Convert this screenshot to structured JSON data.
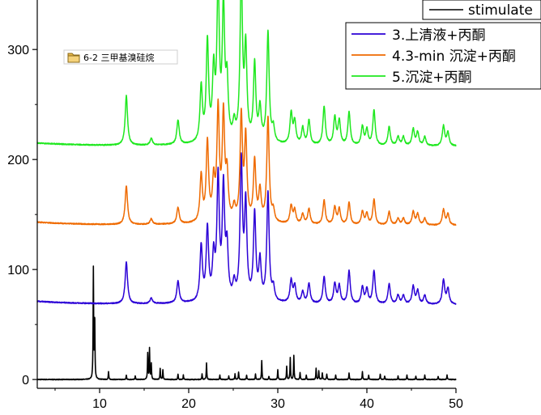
{
  "chart_data": {
    "type": "line",
    "title": "",
    "xlabel": "",
    "ylabel": "",
    "xlim": [
      3,
      50
    ],
    "ylim": [
      -8,
      345
    ],
    "x_ticks": [
      10,
      20,
      30,
      40,
      50
    ],
    "y_ticks": [
      0,
      100,
      200,
      300
    ],
    "grid": false,
    "legend_position": "top-right",
    "badge": {
      "icon": "folder-icon",
      "text": "6-2 三甲基溴硅烷"
    },
    "series": [
      {
        "name": "stimulate",
        "color": "#000000",
        "baseline": 0,
        "peaks": [
          [
            9.3,
            100
          ],
          [
            9.45,
            55
          ],
          [
            11.0,
            7
          ],
          [
            13.0,
            4
          ],
          [
            14.0,
            3
          ],
          [
            15.4,
            24
          ],
          [
            15.6,
            28
          ],
          [
            15.8,
            14
          ],
          [
            16.8,
            10
          ],
          [
            17.1,
            9
          ],
          [
            18.8,
            5
          ],
          [
            19.4,
            4
          ],
          [
            21.5,
            5
          ],
          [
            22.0,
            15
          ],
          [
            23.5,
            4
          ],
          [
            24.5,
            3
          ],
          [
            25.2,
            5
          ],
          [
            25.6,
            7
          ],
          [
            26.5,
            4
          ],
          [
            27.5,
            5
          ],
          [
            28.2,
            17
          ],
          [
            29.0,
            3
          ],
          [
            30.0,
            9
          ],
          [
            31.0,
            12
          ],
          [
            31.4,
            20
          ],
          [
            31.8,
            22
          ],
          [
            32.5,
            6
          ],
          [
            33.2,
            4
          ],
          [
            34.3,
            10
          ],
          [
            34.6,
            8
          ],
          [
            35.0,
            6
          ],
          [
            35.5,
            5
          ],
          [
            36.5,
            4
          ],
          [
            38.0,
            6
          ],
          [
            39.5,
            7
          ],
          [
            40.2,
            4
          ],
          [
            41.5,
            5
          ],
          [
            42.0,
            3
          ],
          [
            43.5,
            3
          ],
          [
            44.5,
            4
          ],
          [
            45.5,
            3
          ],
          [
            46.5,
            4
          ],
          [
            48.0,
            3
          ],
          [
            49.0,
            4
          ]
        ]
      },
      {
        "name": "3.上清液+丙酮",
        "color": "#2b00d6",
        "baseline": 68,
        "peaks": [
          [
            13.0,
            38
          ],
          [
            15.8,
            5
          ],
          [
            18.8,
            20
          ],
          [
            21.4,
            50
          ],
          [
            22.1,
            65
          ],
          [
            22.8,
            38
          ],
          [
            23.3,
            110
          ],
          [
            23.9,
            100
          ],
          [
            24.3,
            45
          ],
          [
            25.1,
            14
          ],
          [
            25.9,
            125
          ],
          [
            26.4,
            85
          ],
          [
            27.4,
            78
          ],
          [
            28.0,
            35
          ],
          [
            28.9,
            98
          ],
          [
            29.5,
            12
          ],
          [
            31.5,
            20
          ],
          [
            31.9,
            15
          ],
          [
            32.8,
            10
          ],
          [
            33.5,
            18
          ],
          [
            35.2,
            24
          ],
          [
            36.4,
            18
          ],
          [
            36.9,
            16
          ],
          [
            38.0,
            30
          ],
          [
            39.5,
            15
          ],
          [
            40.0,
            13
          ],
          [
            40.8,
            30
          ],
          [
            42.5,
            18
          ],
          [
            43.5,
            8
          ],
          [
            44.1,
            8
          ],
          [
            45.2,
            16
          ],
          [
            45.7,
            12
          ],
          [
            46.5,
            8
          ],
          [
            48.6,
            22
          ],
          [
            49.1,
            14
          ]
        ]
      },
      {
        "name": "4.3-min 沉淀+丙酮",
        "color": "#ef6a00",
        "baseline": 140,
        "peaks": [
          [
            13.0,
            35
          ],
          [
            15.8,
            5
          ],
          [
            18.8,
            15
          ],
          [
            21.4,
            42
          ],
          [
            22.1,
            72
          ],
          [
            22.8,
            35
          ],
          [
            23.3,
            100
          ],
          [
            23.9,
            95
          ],
          [
            24.3,
            40
          ],
          [
            25.1,
            12
          ],
          [
            25.9,
            95
          ],
          [
            26.4,
            75
          ],
          [
            27.4,
            55
          ],
          [
            28.0,
            28
          ],
          [
            28.9,
            95
          ],
          [
            29.5,
            10
          ],
          [
            31.5,
            16
          ],
          [
            31.9,
            12
          ],
          [
            32.8,
            9
          ],
          [
            33.5,
            14
          ],
          [
            35.2,
            22
          ],
          [
            36.4,
            16
          ],
          [
            36.9,
            14
          ],
          [
            38.0,
            20
          ],
          [
            39.5,
            12
          ],
          [
            40.0,
            10
          ],
          [
            40.8,
            23
          ],
          [
            42.5,
            12
          ],
          [
            43.5,
            6
          ],
          [
            44.1,
            6
          ],
          [
            45.2,
            12
          ],
          [
            45.7,
            10
          ],
          [
            46.5,
            6
          ],
          [
            48.6,
            14
          ],
          [
            49.1,
            10
          ]
        ]
      },
      {
        "name": "5.沉淀+丙酮",
        "color": "#1fe81f",
        "baseline": 212,
        "peaks": [
          [
            13.0,
            45
          ],
          [
            15.8,
            6
          ],
          [
            18.8,
            22
          ],
          [
            21.4,
            50
          ],
          [
            22.1,
            90
          ],
          [
            22.8,
            60
          ],
          [
            23.3,
            140
          ],
          [
            23.9,
            120
          ],
          [
            24.3,
            50
          ],
          [
            25.1,
            15
          ],
          [
            25.9,
            150
          ],
          [
            26.4,
            82
          ],
          [
            27.4,
            70
          ],
          [
            28.0,
            30
          ],
          [
            28.9,
            100
          ],
          [
            29.5,
            13
          ],
          [
            31.5,
            28
          ],
          [
            31.9,
            20
          ],
          [
            32.8,
            15
          ],
          [
            33.5,
            22
          ],
          [
            35.2,
            35
          ],
          [
            36.4,
            25
          ],
          [
            36.9,
            22
          ],
          [
            38.0,
            30
          ],
          [
            39.5,
            17
          ],
          [
            40.0,
            14
          ],
          [
            40.8,
            32
          ],
          [
            42.5,
            17
          ],
          [
            43.5,
            8
          ],
          [
            44.1,
            8
          ],
          [
            45.2,
            15
          ],
          [
            45.7,
            12
          ],
          [
            46.5,
            8
          ],
          [
            48.6,
            18
          ],
          [
            49.1,
            12
          ]
        ]
      }
    ]
  }
}
